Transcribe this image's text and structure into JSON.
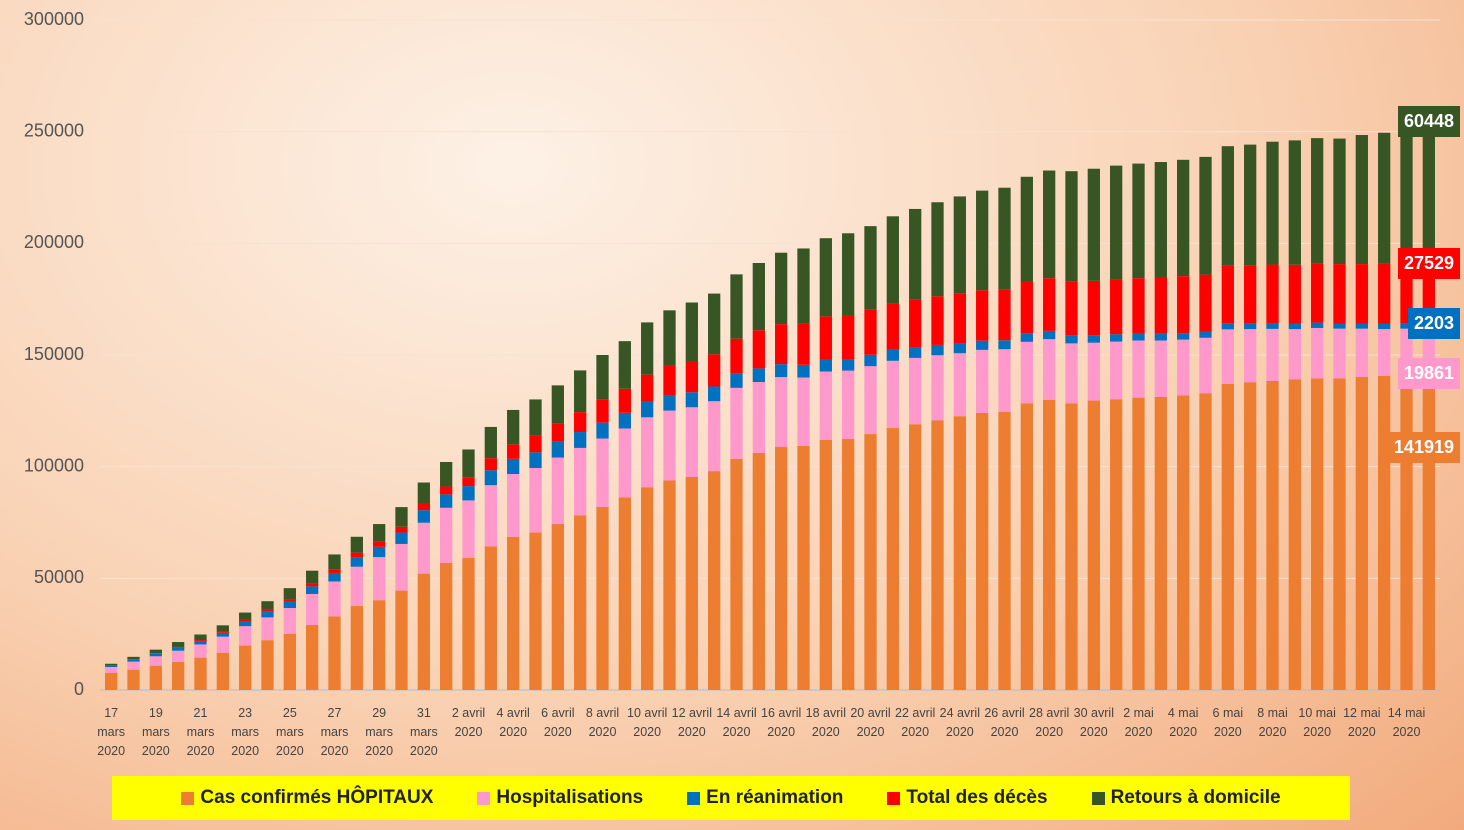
{
  "chart_data": {
    "type": "bar",
    "stacked": true,
    "categories": [
      "17 mars 2020",
      null,
      "19 mars 2020",
      null,
      "21 mars 2020",
      null,
      "23 mars 2020",
      null,
      "25 mars 2020",
      null,
      "27 mars 2020",
      null,
      "29 mars 2020",
      null,
      "31 mars 2020",
      null,
      "2 avril 2020",
      null,
      "4 avril 2020",
      null,
      "6 avril 2020",
      null,
      "8 avril 2020",
      null,
      "10 avril 2020",
      null,
      "12 avril 2020",
      null,
      "14 avril 2020",
      null,
      "16 avril 2020",
      null,
      "18 avril 2020",
      null,
      "20 avril 2020",
      null,
      "22 avril 2020",
      null,
      "24 avril 2020",
      null,
      "26 avril 2020",
      null,
      "28 avril 2020",
      null,
      "30 avril 2020",
      null,
      "2 mai 2020",
      null,
      "4 mai 2020",
      null,
      "6 mai 2020",
      null,
      "8 mai 2020",
      null,
      "10 mai 2020",
      null,
      "12 mai 2020",
      null,
      "14 mai 2020",
      null
    ],
    "series": [
      {
        "name": "Cas confirmés HÔPITAUX",
        "color": "#ed7d31",
        "values": [
          7700,
          9100,
          10900,
          12600,
          14500,
          16700,
          19900,
          22300,
          25200,
          29100,
          32900,
          37600,
          40200,
          44500,
          52100,
          56900,
          59100,
          64300,
          68600,
          70500,
          74400,
          78200,
          82000,
          86300,
          90800,
          93800,
          95400,
          98000,
          103500,
          106200,
          108800,
          109300,
          112000,
          112400,
          114600,
          117300,
          119000,
          120800,
          122600,
          124100,
          124600,
          128400,
          129900,
          128400,
          129600,
          130200,
          130900,
          131300,
          131900,
          132900,
          137100,
          137800,
          138400,
          139100,
          139500,
          139500,
          140200,
          140700,
          141400,
          141919
        ]
      },
      {
        "name": "Hospitalisations",
        "color": "#ff99cc",
        "values": [
          2600,
          3600,
          4200,
          5000,
          5900,
          7200,
          8700,
          10200,
          11500,
          13900,
          15700,
          17600,
          19300,
          20900,
          22800,
          24700,
          25800,
          27400,
          28100,
          28900,
          29700,
          30200,
          30600,
          30800,
          31300,
          31300,
          31200,
          31300,
          31800,
          31700,
          31300,
          30600,
          30600,
          30600,
          30400,
          30100,
          29700,
          29100,
          28200,
          28200,
          28000,
          27500,
          27200,
          26800,
          25900,
          25800,
          25600,
          25200,
          25000,
          24800,
          24400,
          23800,
          23300,
          22500,
          22600,
          22300,
          21600,
          20900,
          20400,
          19861
        ]
      },
      {
        "name": "En réanimation",
        "color": "#0070c0",
        "values": [
          700,
          900,
          1100,
          1300,
          1500,
          1700,
          2100,
          2500,
          2900,
          3400,
          3800,
          4300,
          4600,
          5100,
          5600,
          6000,
          6400,
          6700,
          6800,
          7000,
          7100,
          7100,
          7100,
          7000,
          6900,
          6800,
          6700,
          6600,
          6300,
          6100,
          5800,
          5700,
          5400,
          5200,
          5100,
          4900,
          4700,
          4600,
          4400,
          4100,
          4000,
          3800,
          3700,
          3600,
          3400,
          3300,
          3100,
          3000,
          2900,
          2800,
          2700,
          2700,
          2600,
          2500,
          2400,
          2300,
          2300,
          2300,
          2200,
          2203
        ]
      },
      {
        "name": "Total des décès",
        "color": "#ff0000",
        "values": [
          150,
          240,
          260,
          370,
          450,
          560,
          670,
          860,
          1100,
          1330,
          1700,
          2000,
          2300,
          2600,
          3000,
          3500,
          4000,
          5400,
          6500,
          7500,
          8000,
          8900,
          10300,
          10800,
          12200,
          13200,
          13800,
          14400,
          15700,
          17100,
          17900,
          18700,
          19300,
          19700,
          20200,
          20800,
          21300,
          21800,
          22200,
          22600,
          22800,
          23200,
          23600,
          24000,
          24300,
          24700,
          24800,
          25200,
          25500,
          25500,
          25800,
          25900,
          26200,
          26300,
          26400,
          26600,
          26600,
          26900,
          27000,
          27529
        ]
      },
      {
        "name": "Retours à domicile",
        "color": "#375623",
        "values": [
          600,
          1000,
          1600,
          2200,
          2500,
          2800,
          3300,
          3900,
          4900,
          5700,
          6600,
          7100,
          7900,
          8800,
          9400,
          11000,
          12400,
          14000,
          15400,
          16200,
          17200,
          18700,
          20000,
          21300,
          23400,
          24900,
          26400,
          27200,
          28800,
          30100,
          32000,
          33400,
          35000,
          36600,
          37400,
          39000,
          40700,
          42100,
          43600,
          44600,
          45500,
          46900,
          48200,
          49500,
          50200,
          50800,
          51300,
          51700,
          52100,
          52700,
          53500,
          54000,
          55000,
          55700,
          56200,
          56200,
          57800,
          58700,
          59600,
          60448
        ]
      }
    ],
    "ylim": [
      0,
      300000
    ],
    "yticks": [
      0,
      50000,
      100000,
      150000,
      200000,
      250000,
      300000
    ],
    "grid": true
  }
}
